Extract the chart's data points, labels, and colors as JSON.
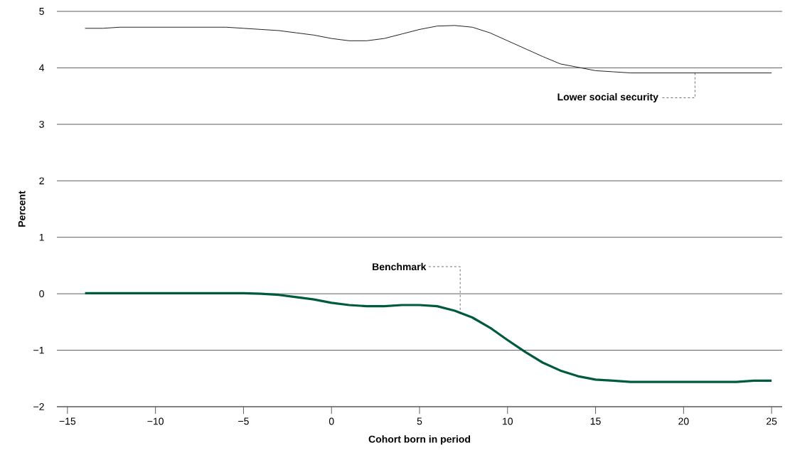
{
  "chart_data": {
    "type": "line",
    "xlabel": "Cohort born in period",
    "ylabel": "Percent",
    "x": [
      -14,
      -13,
      -12,
      -11,
      -10,
      -9,
      -8,
      -7,
      -6,
      -5,
      -4,
      -3,
      -2,
      -1,
      0,
      1,
      2,
      3,
      4,
      5,
      6,
      7,
      8,
      9,
      10,
      11,
      12,
      13,
      14,
      15,
      16,
      17,
      18,
      19,
      20,
      21,
      22,
      23,
      24,
      25
    ],
    "series": [
      {
        "color": "#222222",
        "values": [
          4.7,
          4.7,
          4.72,
          4.72,
          4.72,
          4.72,
          4.72,
          4.72,
          4.72,
          4.7,
          4.68,
          4.66,
          4.62,
          4.58,
          4.52,
          4.48,
          4.48,
          4.52,
          4.6,
          4.68,
          4.74,
          4.75,
          4.72,
          4.62,
          4.48,
          4.34,
          4.2,
          4.07,
          4.01,
          3.95,
          3.93,
          3.91,
          3.91,
          3.91,
          3.91,
          3.91,
          3.91,
          3.91,
          3.91,
          3.91
        ]
      },
      {
        "color": "#005a3c",
        "values": [
          0.01,
          0.01,
          0.01,
          0.01,
          0.01,
          0.01,
          0.01,
          0.01,
          0.01,
          0.01,
          0,
          -0.02,
          -0.06,
          -0.1,
          -0.16,
          -0.2,
          -0.22,
          -0.22,
          -0.2,
          -0.2,
          -0.22,
          -0.3,
          -0.42,
          -0.6,
          -0.82,
          -1.03,
          -1.22,
          -1.36,
          -1.46,
          -1.52,
          -1.54,
          -1.56,
          -1.56,
          -1.56,
          -1.56,
          -1.56,
          -1.56,
          -1.56,
          -1.54,
          -1.54
        ]
      }
    ],
    "xlim": [
      -15.6,
      25.6
    ],
    "ylim": [
      -2,
      5
    ],
    "xticks": [
      {
        "value": -15,
        "label": "−15"
      },
      {
        "value": -10,
        "label": "−10"
      },
      {
        "value": -5,
        "label": "−5"
      },
      0,
      5,
      10,
      15,
      20,
      25
    ],
    "yticks": [
      {
        "value": -2,
        "label": "−2"
      },
      {
        "value": -1,
        "label": "−1"
      },
      0,
      1,
      2,
      3,
      4,
      5
    ],
    "grid": "y",
    "marker": "none",
    "line_style": "solid",
    "annotations": [
      {
        "text": "Lower social security",
        "x": 20.65,
        "y": 3.91
      },
      {
        "text": "Benchmark",
        "x": 7.31,
        "y": -0.36
      }
    ]
  }
}
